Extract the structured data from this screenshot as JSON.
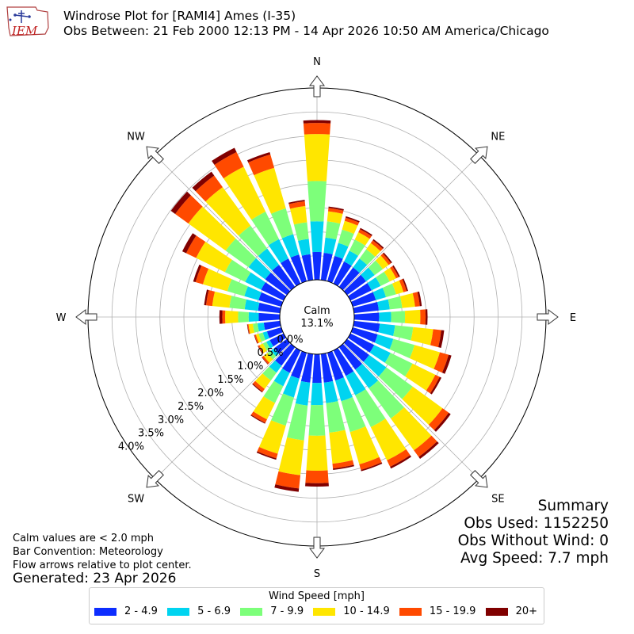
{
  "header": {
    "logo_text": "IEM",
    "title_line1": "Windrose Plot for [RAMI4] Ames (I-35)",
    "title_line2": "Obs Between: 21 Feb 2000 12:13 PM - 14 Apr 2026 10:50 AM America/Chicago"
  },
  "notes": {
    "calm_note": "Calm values are < 2.0 mph",
    "bar_convention": "Bar Convention: Meteorology",
    "flow_note": "Flow arrows relative to plot center.",
    "generated": "Generated: 23 Apr 2026"
  },
  "summary": {
    "title": "Summary",
    "obs_used": "Obs Used: 1152250",
    "obs_without_wind": "Obs Without Wind: 0",
    "avg_speed": "Avg Speed: 7.7 mph"
  },
  "legend": {
    "title": "Wind Speed [mph]",
    "items": [
      {
        "label": "2 - 4.9",
        "color": "#0d2dff"
      },
      {
        "label": "5 - 6.9",
        "color": "#00d4f0"
      },
      {
        "label": "7 - 9.9",
        "color": "#7dff7a"
      },
      {
        "label": "10 - 14.9",
        "color": "#ffe600"
      },
      {
        "label": "15 - 19.9",
        "color": "#ff4a00"
      },
      {
        "label": "20+",
        "color": "#800000"
      }
    ]
  },
  "chart_data": {
    "type": "windrose",
    "calm_label": "Calm",
    "calm_value": "13.1%",
    "direction_labels": [
      "N",
      "NE",
      "E",
      "SE",
      "S",
      "SW",
      "W",
      "NW"
    ],
    "radial_ticks": [
      "0.0%",
      "0.5%",
      "1.0%",
      "1.5%",
      "2.0%",
      "2.5%",
      "3.0%",
      "3.5%",
      "4.0%"
    ],
    "radial_range": [
      0,
      4.0
    ],
    "grid": true,
    "bin_width_deg": 10,
    "speed_bins": [
      "2 - 4.9",
      "5 - 6.9",
      "7 - 9.9",
      "10 - 14.9",
      "15 - 19.9",
      "20+"
    ],
    "colors": [
      "#0d2dff",
      "#00d4f0",
      "#7dff7a",
      "#ffe600",
      "#ff4a00",
      "#800000"
    ],
    "bars": [
      {
        "dir": 0,
        "values": [
          0.58,
          0.64,
          0.84,
          0.98,
          0.23,
          0.06
        ]
      },
      {
        "dir": 10,
        "values": [
          0.57,
          0.32,
          0.34,
          0.21,
          0.07,
          0.03
        ]
      },
      {
        "dir": 20,
        "values": [
          0.55,
          0.28,
          0.29,
          0.19,
          0.07,
          0.03
        ]
      },
      {
        "dir": 30,
        "values": [
          0.51,
          0.25,
          0.26,
          0.17,
          0.07,
          0.03
        ]
      },
      {
        "dir": 40,
        "values": [
          0.5,
          0.23,
          0.24,
          0.16,
          0.07,
          0.03
        ]
      },
      {
        "dir": 50,
        "values": [
          0.49,
          0.22,
          0.21,
          0.15,
          0.06,
          0.03
        ]
      },
      {
        "dir": 60,
        "values": [
          0.49,
          0.21,
          0.21,
          0.15,
          0.06,
          0.03
        ]
      },
      {
        "dir": 70,
        "values": [
          0.5,
          0.22,
          0.22,
          0.16,
          0.07,
          0.03
        ]
      },
      {
        "dir": 80,
        "values": [
          0.52,
          0.23,
          0.26,
          0.27,
          0.1,
          0.04
        ]
      },
      {
        "dir": 90,
        "values": [
          0.52,
          0.25,
          0.29,
          0.32,
          0.11,
          0.04
        ]
      },
      {
        "dir": 100,
        "values": [
          0.54,
          0.32,
          0.38,
          0.42,
          0.17,
          0.06
        ]
      },
      {
        "dir": 110,
        "values": [
          0.54,
          0.34,
          0.46,
          0.55,
          0.19,
          0.06
        ]
      },
      {
        "dir": 120,
        "values": [
          0.55,
          0.38,
          0.51,
          0.53,
          0.1,
          0.04
        ]
      },
      {
        "dir": 130,
        "values": [
          0.57,
          0.44,
          0.68,
          0.77,
          0.16,
          0.05
        ]
      },
      {
        "dir": 140,
        "values": [
          0.58,
          0.48,
          0.78,
          0.82,
          0.17,
          0.05
        ]
      },
      {
        "dir": 150,
        "values": [
          0.59,
          0.45,
          0.74,
          0.77,
          0.15,
          0.04
        ]
      },
      {
        "dir": 160,
        "values": [
          0.6,
          0.45,
          0.67,
          0.7,
          0.12,
          0.03
        ]
      },
      {
        "dir": 170,
        "values": [
          0.6,
          0.43,
          0.62,
          0.65,
          0.1,
          0.03
        ]
      },
      {
        "dir": 180,
        "values": [
          0.6,
          0.46,
          0.64,
          0.73,
          0.26,
          0.07
        ]
      },
      {
        "dir": 190,
        "values": [
          0.6,
          0.48,
          0.73,
          0.73,
          0.28,
          0.07
        ]
      },
      {
        "dir": 200,
        "values": [
          0.56,
          0.41,
          0.61,
          0.61,
          0.1,
          0.03
        ]
      },
      {
        "dir": 210,
        "values": [
          0.52,
          0.31,
          0.39,
          0.38,
          0.08,
          0.02
        ]
      },
      {
        "dir": 220,
        "values": [
          0.48,
          0.18,
          0.2,
          0.22,
          0.07,
          0.02
        ]
      },
      {
        "dir": 230,
        "values": [
          0.33,
          0.08,
          0.09,
          0.1,
          0.04,
          0.01
        ]
      },
      {
        "dir": 240,
        "values": [
          0.32,
          0.08,
          0.08,
          0.08,
          0.03,
          0.01
        ]
      },
      {
        "dir": 250,
        "values": [
          0.31,
          0.09,
          0.09,
          0.06,
          0.03,
          0.01
        ]
      },
      {
        "dir": 260,
        "values": [
          0.34,
          0.13,
          0.1,
          0.09,
          0.02,
          0.01
        ]
      },
      {
        "dir": 270,
        "values": [
          0.44,
          0.21,
          0.22,
          0.27,
          0.06,
          0.06
        ]
      },
      {
        "dir": 280,
        "values": [
          0.46,
          0.28,
          0.32,
          0.36,
          0.13,
          0.04
        ]
      },
      {
        "dir": 290,
        "values": [
          0.49,
          0.31,
          0.37,
          0.53,
          0.16,
          0.05
        ]
      },
      {
        "dir": 300,
        "values": [
          0.52,
          0.37,
          0.47,
          0.67,
          0.23,
          0.09
        ]
      },
      {
        "dir": 310,
        "values": [
          0.56,
          0.43,
          0.59,
          0.96,
          0.34,
          0.11
        ]
      },
      {
        "dir": 320,
        "values": [
          0.57,
          0.42,
          0.59,
          0.99,
          0.3,
          0.1
        ]
      },
      {
        "dir": 330,
        "values": [
          0.58,
          0.45,
          0.64,
          1.04,
          0.34,
          0.1
        ]
      },
      {
        "dir": 340,
        "values": [
          0.58,
          0.44,
          0.56,
          0.88,
          0.29,
          0.05
        ]
      },
      {
        "dir": 350,
        "values": [
          0.54,
          0.32,
          0.35,
          0.34,
          0.1,
          0.03
        ]
      }
    ]
  }
}
